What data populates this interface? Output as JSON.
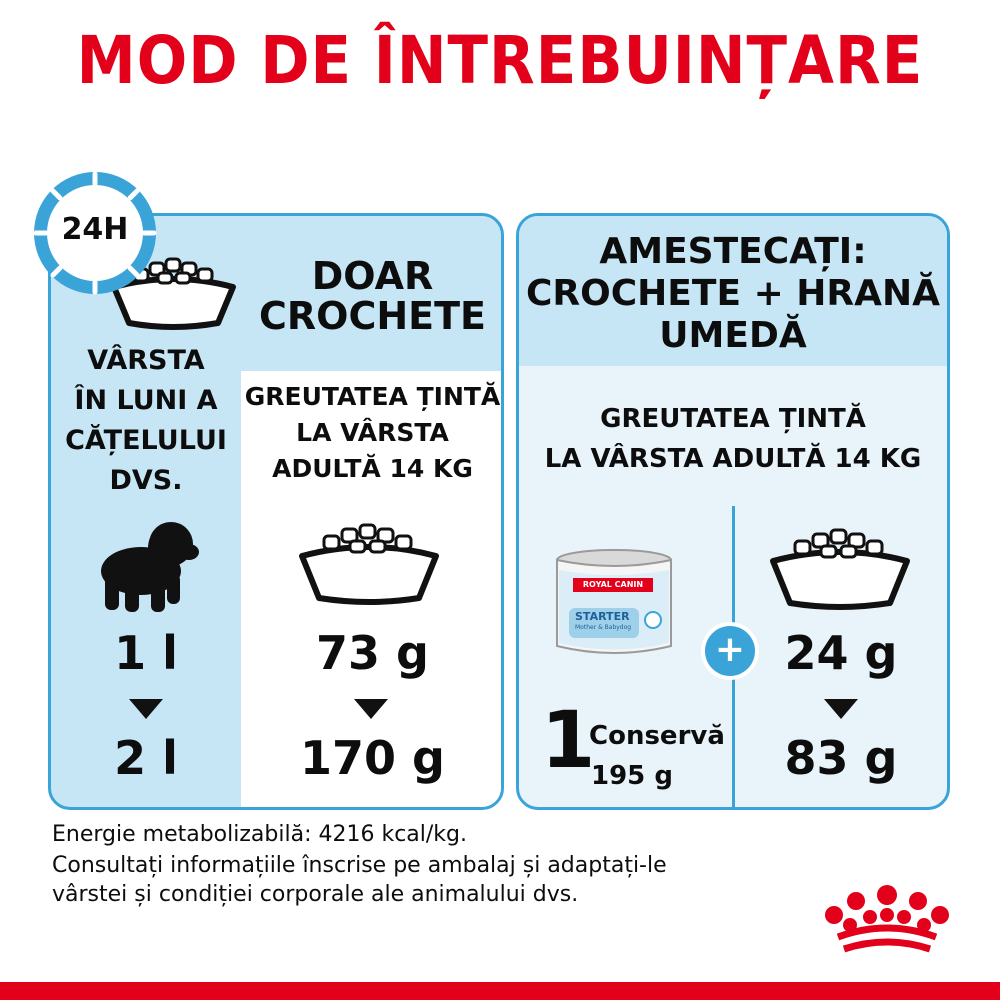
{
  "title": "MOD DE ÎNTREBUINȚARE",
  "clock_label": "24H",
  "left": {
    "age_label": [
      "VÂRSTA",
      "ÎN LUNI A",
      "CĂȚELULUI",
      "DVS."
    ],
    "kibble_header": [
      "DOAR",
      "CROCHETE"
    ],
    "target_weight": [
      "GREUTATEA ȚINTĂ",
      "LA VÂRSTA",
      "ADULTĂ 14 KG"
    ],
    "age_from": "1 l",
    "age_to": "2 l",
    "kibble_from": "73 g",
    "kibble_to": "170 g"
  },
  "right": {
    "header": [
      "AMESTECAȚI:",
      "CROCHETE + HRANĂ",
      "UMEDĂ"
    ],
    "target_weight": [
      "GREUTATEA ȚINTĂ",
      "LA VÂRSTA ADULTĂ 14 KG"
    ],
    "can_brand": "ROYAL CANIN",
    "can_product": "STARTER",
    "can_sub": "Mother & Babydog",
    "can_count": "1",
    "can_unit": "Conservă",
    "can_weight": "195 g",
    "plus_symbol": "+",
    "kibble_from": "24 g",
    "kibble_to": "83 g"
  },
  "footer": {
    "line1": "Energie metabolizabilă: 4216 kcal/kg.",
    "line2": "Consultați informațiile înscrise pe ambalaj și adaptați-le",
    "line3": "vârstei și condiției corporale ale animalului dvs."
  },
  "colors": {
    "brand_red": "#e2001a",
    "panel_blue": "#c7e6f5",
    "border_blue": "#3aa4d8"
  }
}
